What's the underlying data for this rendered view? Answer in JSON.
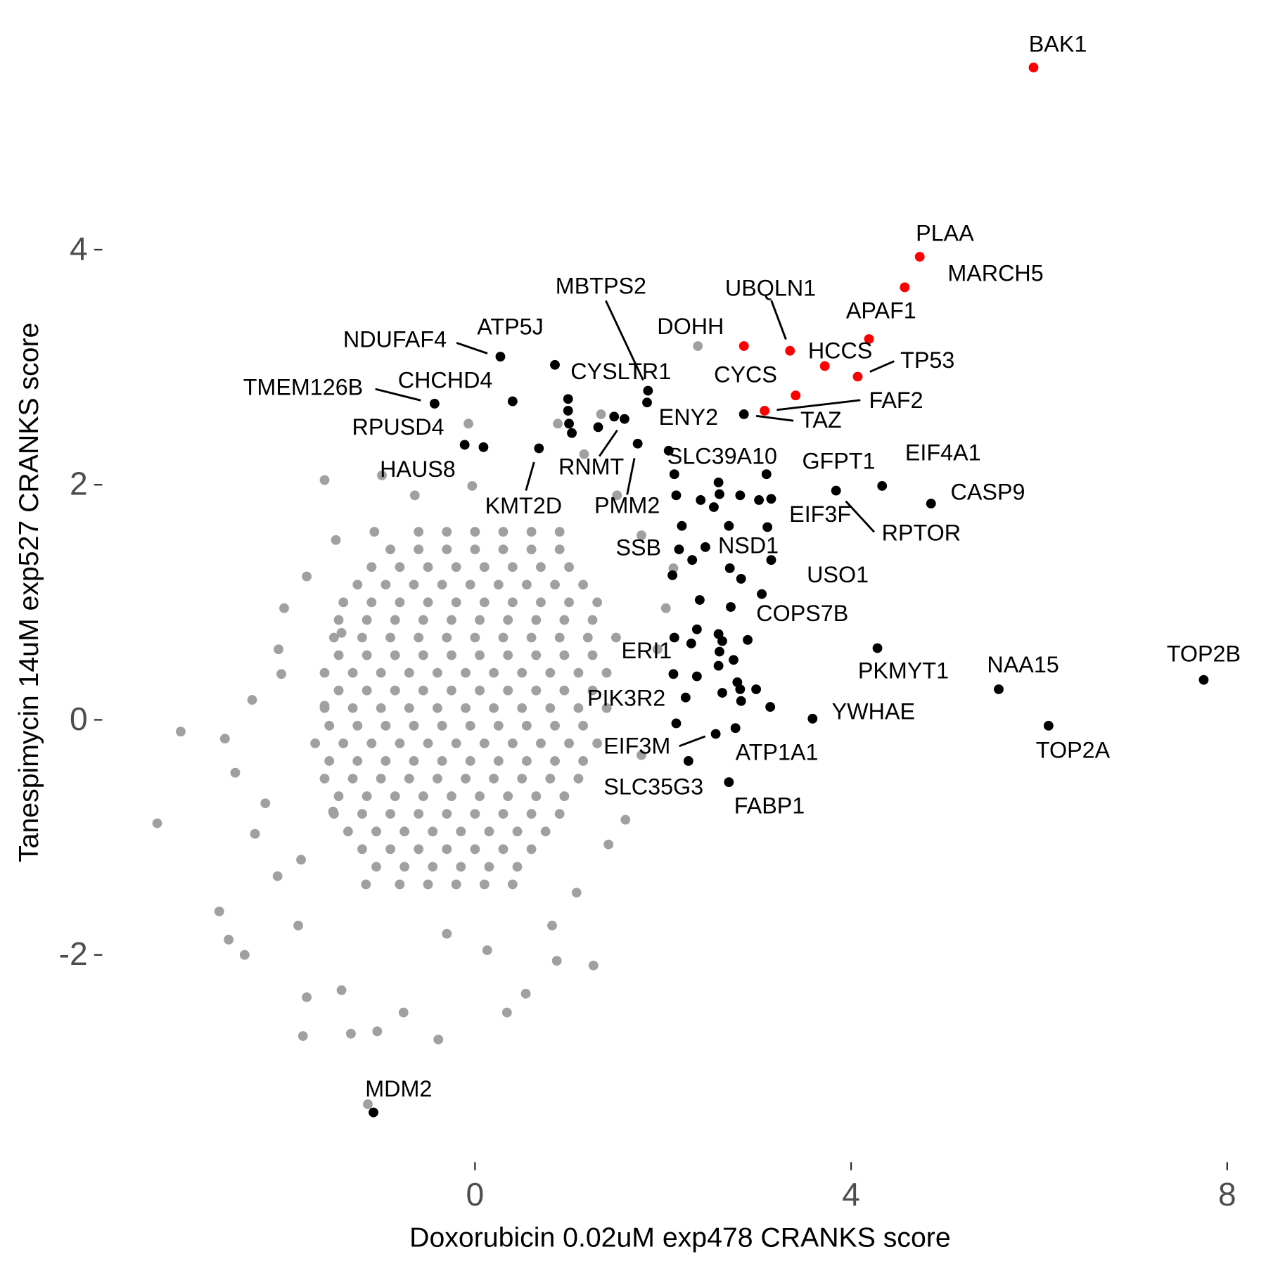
{
  "chart_data": {
    "type": "scatter",
    "x_label": "Doxorubicin 0.02uM exp478 CRANKS score",
    "y_label": "Tanespimycin 14uM exp527 CRANKS score",
    "xlim": [
      -3.93,
      8.24
    ],
    "ylim": [
      -3.68,
      5.71
    ],
    "xticks": [
      0,
      4,
      8
    ],
    "yticks": [
      -2,
      0,
      2,
      4
    ],
    "background_color": "#a0a0a0",
    "hit_color": "#000000",
    "highlight_color": "#ff0000",
    "labeled_points": [
      {
        "label": "BAK1",
        "x": 5.94,
        "y": 5.55,
        "color": "#ff0000"
      },
      {
        "label": "PLAA",
        "x": 4.73,
        "y": 3.94,
        "color": "#ff0000"
      },
      {
        "label": "MARCH5",
        "x": 4.57,
        "y": 3.68,
        "color": "#ff0000"
      },
      {
        "label": "APAF1",
        "x": 4.19,
        "y": 3.24,
        "color": "#ff0000"
      },
      {
        "label": "TP53",
        "x": 4.07,
        "y": 2.92,
        "color": "#ff0000"
      },
      {
        "label": "HCCS",
        "x": 3.72,
        "y": 3.01,
        "color": "#ff0000"
      },
      {
        "label": "UBQLN1",
        "x": 3.35,
        "y": 3.14,
        "color": "#ff0000"
      },
      {
        "label": "DOHH",
        "x": 2.37,
        "y": 3.18,
        "color": "#a0a0a0"
      },
      {
        "label": "CYCS",
        "x": 2.86,
        "y": 3.18,
        "color": "#ff0000"
      },
      {
        "label": "FAF2",
        "x": 3.08,
        "y": 2.63,
        "color": "#ff0000"
      },
      {
        "label": "TAZ",
        "x": 2.86,
        "y": 2.6,
        "color": "#000000"
      },
      {
        "label": "NDUFAF4",
        "x": 0.27,
        "y": 3.09,
        "color": "#000000"
      },
      {
        "label": "ATP5J",
        "x": 0.85,
        "y": 3.02,
        "color": "#000000"
      },
      {
        "label": "CYSLTR1",
        "x": 0.99,
        "y": 2.73,
        "color": "#000000"
      },
      {
        "label": "MBTPS2",
        "x": 1.84,
        "y": 2.8,
        "color": "#000000"
      },
      {
        "label": "ENY2",
        "x": 1.83,
        "y": 2.7,
        "color": "#000000"
      },
      {
        "label": "CHCHD4",
        "x": 0.4,
        "y": 2.71,
        "color": "#000000"
      },
      {
        "label": "TMEM126B",
        "x": -0.43,
        "y": 2.69,
        "color": "#000000"
      },
      {
        "label": "RPUSD4",
        "x": -0.11,
        "y": 2.34,
        "color": "#000000"
      },
      {
        "label": "HAUS8",
        "x": 0.09,
        "y": 2.32,
        "color": "#000000"
      },
      {
        "label": "KMT2D",
        "x": 0.68,
        "y": 2.31,
        "color": "#000000"
      },
      {
        "label": "RNMT",
        "x": 1.59,
        "y": 2.56,
        "color": "#000000"
      },
      {
        "label": "PMM2",
        "x": 1.73,
        "y": 2.35,
        "color": "#000000"
      },
      {
        "label": "SLC39A10",
        "x": 2.06,
        "y": 2.29,
        "color": "#000000"
      },
      {
        "label": "GFPT1",
        "x": 3.1,
        "y": 2.09,
        "color": "#000000"
      },
      {
        "label": "EIF4A1",
        "x": 4.33,
        "y": 1.99,
        "color": "#000000"
      },
      {
        "label": "CASP9",
        "x": 4.85,
        "y": 1.84,
        "color": "#000000"
      },
      {
        "label": "RPTOR",
        "x": 3.84,
        "y": 1.95,
        "color": "#000000"
      },
      {
        "label": "EIF3F",
        "x": 3.11,
        "y": 1.64,
        "color": "#000000"
      },
      {
        "label": "NSD1",
        "x": 2.45,
        "y": 1.47,
        "color": "#000000"
      },
      {
        "label": "SSB",
        "x": 2.17,
        "y": 1.45,
        "color": "#000000"
      },
      {
        "label": "USO1",
        "x": 3.15,
        "y": 1.36,
        "color": "#000000"
      },
      {
        "label": "COPS7B",
        "x": 3.05,
        "y": 1.07,
        "color": "#000000"
      },
      {
        "label": "PKMYT1",
        "x": 4.28,
        "y": 0.61,
        "color": "#000000"
      },
      {
        "label": "ERI1",
        "x": 2.3,
        "y": 0.65,
        "color": "#000000"
      },
      {
        "label": "PIK3R2",
        "x": 2.24,
        "y": 0.19,
        "color": "#000000"
      },
      {
        "label": "YWHAE",
        "x": 3.59,
        "y": 0.01,
        "color": "#000000"
      },
      {
        "label": "NAA15",
        "x": 5.57,
        "y": 0.26,
        "color": "#000000"
      },
      {
        "label": "TOP2B",
        "x": 7.75,
        "y": 0.34,
        "color": "#000000"
      },
      {
        "label": "TOP2A",
        "x": 6.1,
        "y": -0.05,
        "color": "#000000"
      },
      {
        "label": "EIF3M",
        "x": 2.56,
        "y": -0.12,
        "color": "#000000"
      },
      {
        "label": "ATP1A1",
        "x": 2.77,
        "y": -0.07,
        "color": "#000000"
      },
      {
        "label": "SLC35G3",
        "x": 2.27,
        "y": -0.35,
        "color": "#000000"
      },
      {
        "label": "FABP1",
        "x": 2.7,
        "y": -0.53,
        "color": "#000000"
      },
      {
        "label": "MDM2",
        "x": -1.08,
        "y": -3.34,
        "color": "#000000"
      }
    ],
    "highlight_points": [
      [
        3.41,
        2.76
      ]
    ],
    "hit_points": [
      [
        0.99,
        2.63
      ],
      [
        1.0,
        2.52
      ],
      [
        1.03,
        2.44
      ],
      [
        1.31,
        2.49
      ],
      [
        1.48,
        2.58
      ],
      [
        2.12,
        2.09
      ],
      [
        2.14,
        1.91
      ],
      [
        2.4,
        1.87
      ],
      [
        2.54,
        1.81
      ],
      [
        2.59,
        2.02
      ],
      [
        2.6,
        1.92
      ],
      [
        2.82,
        1.91
      ],
      [
        3.02,
        1.87
      ],
      [
        3.15,
        1.88
      ],
      [
        2.2,
        1.65
      ],
      [
        2.7,
        1.65
      ],
      [
        2.31,
        1.36
      ],
      [
        2.1,
        1.23
      ],
      [
        2.71,
        1.29
      ],
      [
        2.83,
        1.2
      ],
      [
        2.39,
        1.02
      ],
      [
        2.72,
        0.96
      ],
      [
        2.36,
        0.77
      ],
      [
        2.59,
        0.73
      ],
      [
        2.63,
        0.67
      ],
      [
        2.9,
        0.68
      ],
      [
        2.6,
        0.58
      ],
      [
        2.75,
        0.51
      ],
      [
        2.59,
        0.46
      ],
      [
        2.11,
        0.39
      ],
      [
        2.36,
        0.37
      ],
      [
        2.79,
        0.32
      ],
      [
        2.82,
        0.26
      ],
      [
        2.99,
        0.26
      ],
      [
        2.63,
        0.23
      ],
      [
        2.83,
        0.16
      ],
      [
        3.14,
        0.11
      ],
      [
        2.14,
        -0.03
      ],
      [
        2.12,
        0.7
      ]
    ],
    "background_points": [
      [
        -3.38,
        -0.88
      ],
      [
        -3.13,
        -0.1
      ],
      [
        -2.72,
        -1.63
      ],
      [
        -2.62,
        -1.87
      ],
      [
        -2.45,
        -2.0
      ],
      [
        -2.66,
        -0.16
      ],
      [
        -2.37,
        0.17
      ],
      [
        -2.55,
        -0.45
      ],
      [
        -2.34,
        -0.97
      ],
      [
        -1.83,
        -2.69
      ],
      [
        -1.32,
        -2.67
      ],
      [
        -1.04,
        -2.65
      ],
      [
        -0.39,
        -2.72
      ],
      [
        -1.14,
        -3.27
      ],
      [
        -1.79,
        -2.36
      ],
      [
        -1.42,
        -2.3
      ],
      [
        -0.76,
        -2.49
      ],
      [
        0.34,
        -2.49
      ],
      [
        0.54,
        -2.33
      ],
      [
        1.26,
        -2.09
      ],
      [
        0.87,
        -2.05
      ],
      [
        -1.6,
        2.04
      ],
      [
        -0.99,
        2.08
      ],
      [
        -0.07,
        2.52
      ],
      [
        0.88,
        2.52
      ],
      [
        1.34,
        2.6
      ],
      [
        -2.03,
        0.95
      ],
      [
        -2.09,
        0.6
      ],
      [
        -2.06,
        0.39
      ],
      [
        -1.79,
        1.22
      ],
      [
        -1.48,
        1.53
      ],
      [
        -1.07,
        1.6
      ],
      [
        -0.64,
        1.91
      ],
      [
        -0.03,
        1.99
      ],
      [
        1.16,
        2.26
      ],
      [
        1.51,
        1.91
      ],
      [
        1.77,
        1.57
      ],
      [
        2.11,
        1.29
      ],
      [
        2.03,
        0.95
      ],
      [
        1.94,
        0.6
      ],
      [
        1.77,
        -0.3
      ],
      [
        1.6,
        -0.85
      ],
      [
        -1.88,
        -1.75
      ],
      [
        -2.1,
        -1.33
      ],
      [
        -2.23,
        -0.71
      ],
      [
        -1.85,
        -1.19
      ],
      [
        0.13,
        -1.96
      ],
      [
        -0.3,
        -1.82
      ],
      [
        0.82,
        -1.75
      ],
      [
        1.08,
        -1.47
      ],
      [
        1.42,
        -1.06
      ],
      [
        -1.42,
        0.74
      ],
      [
        -1.6,
        0.12
      ],
      [
        -1.51,
        -0.78
      ],
      [
        -1.16,
        -1.4
      ],
      [
        -0.6,
        1.6
      ],
      [
        -0.3,
        1.6
      ],
      [
        0,
        1.6
      ],
      [
        0.3,
        1.6
      ],
      [
        0.6,
        1.6
      ],
      [
        0.9,
        1.6
      ],
      [
        -1.1,
        1.3
      ],
      [
        -0.8,
        1.3
      ],
      [
        -0.5,
        1.3
      ],
      [
        -0.2,
        1.3
      ],
      [
        0.1,
        1.3
      ],
      [
        0.4,
        1.3
      ],
      [
        0.7,
        1.3
      ],
      [
        1.0,
        1.3
      ],
      [
        -1.4,
        1.0
      ],
      [
        -1.1,
        1.0
      ],
      [
        -0.8,
        1.0
      ],
      [
        -0.5,
        1.0
      ],
      [
        -0.2,
        1.0
      ],
      [
        0.1,
        1.0
      ],
      [
        0.4,
        1.0
      ],
      [
        0.7,
        1.0
      ],
      [
        1.0,
        1.0
      ],
      [
        1.3,
        1.0
      ],
      [
        -1.5,
        0.7
      ],
      [
        -1.2,
        0.7
      ],
      [
        -0.9,
        0.7
      ],
      [
        -0.6,
        0.7
      ],
      [
        -0.3,
        0.7
      ],
      [
        0,
        0.7
      ],
      [
        0.3,
        0.7
      ],
      [
        0.6,
        0.7
      ],
      [
        0.9,
        0.7
      ],
      [
        1.2,
        0.7
      ],
      [
        1.5,
        0.7
      ],
      [
        -1.6,
        0.4
      ],
      [
        -1.3,
        0.4
      ],
      [
        -1.0,
        0.4
      ],
      [
        -0.7,
        0.4
      ],
      [
        -0.4,
        0.4
      ],
      [
        -0.1,
        0.4
      ],
      [
        0.2,
        0.4
      ],
      [
        0.5,
        0.4
      ],
      [
        0.8,
        0.4
      ],
      [
        1.1,
        0.4
      ],
      [
        1.4,
        0.4
      ],
      [
        -1.6,
        0.1
      ],
      [
        -1.3,
        0.1
      ],
      [
        -1.0,
        0.1
      ],
      [
        -0.7,
        0.1
      ],
      [
        -0.4,
        0.1
      ],
      [
        -0.1,
        0.1
      ],
      [
        0.2,
        0.1
      ],
      [
        0.5,
        0.1
      ],
      [
        0.8,
        0.1
      ],
      [
        1.1,
        0.1
      ],
      [
        1.4,
        0.1
      ],
      [
        -1.7,
        -0.2
      ],
      [
        -1.4,
        -0.2
      ],
      [
        -1.1,
        -0.2
      ],
      [
        -0.8,
        -0.2
      ],
      [
        -0.5,
        -0.2
      ],
      [
        -0.2,
        -0.2
      ],
      [
        0.1,
        -0.2
      ],
      [
        0.4,
        -0.2
      ],
      [
        0.7,
        -0.2
      ],
      [
        1.0,
        -0.2
      ],
      [
        1.3,
        -0.2
      ],
      [
        -1.6,
        -0.5
      ],
      [
        -1.3,
        -0.5
      ],
      [
        -1.0,
        -0.5
      ],
      [
        -0.7,
        -0.5
      ],
      [
        -0.4,
        -0.5
      ],
      [
        -0.1,
        -0.5
      ],
      [
        0.2,
        -0.5
      ],
      [
        0.5,
        -0.5
      ],
      [
        0.8,
        -0.5
      ],
      [
        1.1,
        -0.5
      ],
      [
        -1.5,
        -0.8
      ],
      [
        -1.2,
        -0.8
      ],
      [
        -0.9,
        -0.8
      ],
      [
        -0.6,
        -0.8
      ],
      [
        -0.3,
        -0.8
      ],
      [
        0,
        -0.8
      ],
      [
        0.3,
        -0.8
      ],
      [
        0.6,
        -0.8
      ],
      [
        0.9,
        -0.8
      ],
      [
        -1.2,
        -1.1
      ],
      [
        -0.9,
        -1.1
      ],
      [
        -0.6,
        -1.1
      ],
      [
        -0.3,
        -1.1
      ],
      [
        0,
        -1.1
      ],
      [
        0.3,
        -1.1
      ],
      [
        0.6,
        -1.1
      ],
      [
        -0.8,
        -1.4
      ],
      [
        -0.5,
        -1.4
      ],
      [
        -0.2,
        -1.4
      ],
      [
        0.1,
        -1.4
      ],
      [
        0.4,
        -1.4
      ],
      [
        -0.9,
        1.45
      ],
      [
        -0.6,
        1.45
      ],
      [
        -0.3,
        1.45
      ],
      [
        0,
        1.45
      ],
      [
        0.3,
        1.45
      ],
      [
        0.6,
        1.45
      ],
      [
        0.9,
        1.45
      ],
      [
        -1.25,
        1.15
      ],
      [
        -0.95,
        1.15
      ],
      [
        -0.65,
        1.15
      ],
      [
        -0.35,
        1.15
      ],
      [
        -0.05,
        1.15
      ],
      [
        0.25,
        1.15
      ],
      [
        0.55,
        1.15
      ],
      [
        0.85,
        1.15
      ],
      [
        1.15,
        1.15
      ],
      [
        -1.45,
        0.85
      ],
      [
        -1.15,
        0.85
      ],
      [
        -0.85,
        0.85
      ],
      [
        -0.55,
        0.85
      ],
      [
        -0.25,
        0.85
      ],
      [
        0.05,
        0.85
      ],
      [
        0.35,
        0.85
      ],
      [
        0.65,
        0.85
      ],
      [
        0.95,
        0.85
      ],
      [
        1.25,
        0.85
      ],
      [
        -1.45,
        0.55
      ],
      [
        -1.15,
        0.55
      ],
      [
        -0.85,
        0.55
      ],
      [
        -0.55,
        0.55
      ],
      [
        -0.25,
        0.55
      ],
      [
        0.05,
        0.55
      ],
      [
        0.35,
        0.55
      ],
      [
        0.65,
        0.55
      ],
      [
        0.95,
        0.55
      ],
      [
        1.25,
        0.55
      ],
      [
        -1.45,
        0.25
      ],
      [
        -1.15,
        0.25
      ],
      [
        -0.85,
        0.25
      ],
      [
        -0.55,
        0.25
      ],
      [
        -0.25,
        0.25
      ],
      [
        0.05,
        0.25
      ],
      [
        0.35,
        0.25
      ],
      [
        0.65,
        0.25
      ],
      [
        0.95,
        0.25
      ],
      [
        1.25,
        0.25
      ],
      [
        -1.55,
        -0.05
      ],
      [
        -1.25,
        -0.05
      ],
      [
        -0.95,
        -0.05
      ],
      [
        -0.65,
        -0.05
      ],
      [
        -0.35,
        -0.05
      ],
      [
        -0.05,
        -0.05
      ],
      [
        0.25,
        -0.05
      ],
      [
        0.55,
        -0.05
      ],
      [
        0.85,
        -0.05
      ],
      [
        1.15,
        -0.05
      ],
      [
        -1.55,
        -0.35
      ],
      [
        -1.25,
        -0.35
      ],
      [
        -0.95,
        -0.35
      ],
      [
        -0.65,
        -0.35
      ],
      [
        -0.35,
        -0.35
      ],
      [
        -0.05,
        -0.35
      ],
      [
        0.25,
        -0.35
      ],
      [
        0.55,
        -0.35
      ],
      [
        0.85,
        -0.35
      ],
      [
        1.15,
        -0.35
      ],
      [
        -1.45,
        -0.65
      ],
      [
        -1.15,
        -0.65
      ],
      [
        -0.85,
        -0.65
      ],
      [
        -0.55,
        -0.65
      ],
      [
        -0.25,
        -0.65
      ],
      [
        0.05,
        -0.65
      ],
      [
        0.35,
        -0.65
      ],
      [
        0.65,
        -0.65
      ],
      [
        0.95,
        -0.65
      ],
      [
        -1.35,
        -0.95
      ],
      [
        -1.05,
        -0.95
      ],
      [
        -0.75,
        -0.95
      ],
      [
        -0.45,
        -0.95
      ],
      [
        -0.15,
        -0.95
      ],
      [
        0.15,
        -0.95
      ],
      [
        0.45,
        -0.95
      ],
      [
        0.75,
        -0.95
      ],
      [
        -1.05,
        -1.25
      ],
      [
        -0.75,
        -1.25
      ],
      [
        -0.45,
        -1.25
      ],
      [
        -0.15,
        -1.25
      ],
      [
        0.15,
        -1.25
      ],
      [
        0.45,
        -1.25
      ]
    ]
  }
}
